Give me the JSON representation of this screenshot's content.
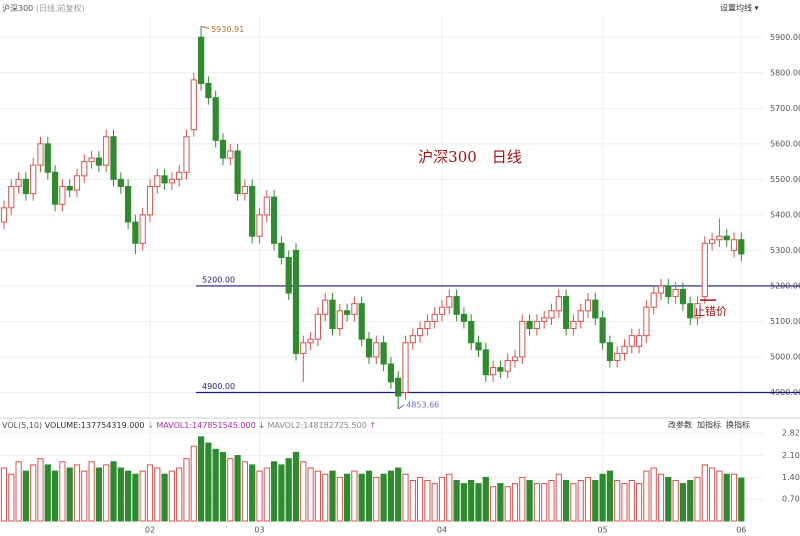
{
  "chart_data": {
    "type": "candlestick",
    "title": "沪深300",
    "subtitle": "(日线,前复权)",
    "menu_label": "设置均线 ▾",
    "annotation": "沪深300　日线",
    "stop_label": "止错价",
    "up_color": "#d9534f",
    "down_color": "#2e8b2e",
    "categories": [
      null,
      null,
      null,
      null,
      null,
      null,
      null,
      null,
      null,
      null,
      null,
      null,
      null,
      null,
      null,
      null,
      null,
      null,
      null,
      null,
      "02",
      null,
      null,
      null,
      null,
      null,
      null,
      null,
      null,
      null,
      null,
      null,
      null,
      null,
      null,
      "03",
      null,
      null,
      null,
      null,
      null,
      null,
      null,
      null,
      null,
      null,
      null,
      null,
      null,
      null,
      null,
      null,
      null,
      null,
      null,
      null,
      null,
      null,
      null,
      null,
      "04",
      null,
      null,
      null,
      null,
      null,
      null,
      null,
      null,
      null,
      null,
      null,
      null,
      null,
      null,
      null,
      null,
      null,
      null,
      null,
      null,
      null,
      "05",
      null,
      null,
      null,
      null,
      null,
      null,
      null,
      null,
      null,
      null,
      null,
      null,
      null,
      null,
      null,
      null,
      null,
      null,
      "06"
    ],
    "open": [
      5380,
      5420,
      5480,
      5500,
      5460,
      5540,
      5600,
      5520,
      5430,
      5480,
      5470,
      5510,
      5550,
      5560,
      5540,
      5620,
      5500,
      5480,
      5380,
      5320,
      5400,
      5480,
      5510,
      5490,
      5500,
      5520,
      5640,
      5900,
      5770,
      5730,
      5610,
      5560,
      5580,
      5460,
      5480,
      5340,
      5400,
      5450,
      5320,
      5280,
      5300,
      5010,
      5040,
      5050,
      5120,
      5160,
      5080,
      5130,
      5120,
      5150,
      5050,
      5000,
      5040,
      4980,
      4940,
      4900,
      5040,
      5060,
      5080,
      5100,
      5120,
      5140,
      5170,
      5120,
      5100,
      5040,
      5020,
      4950,
      4970,
      4960,
      4990,
      5000,
      5100,
      5080,
      5100,
      5110,
      5130,
      5170,
      5080,
      5100,
      5130,
      5160,
      5110,
      5040,
      4990,
      5010,
      5030,
      5030,
      5060,
      5140,
      5180,
      5200,
      5170,
      5190,
      5150,
      5110,
      5170,
      5320,
      5330,
      5340,
      5300,
      5330
    ],
    "high": [
      5440,
      5500,
      5520,
      5520,
      5560,
      5620,
      5620,
      5540,
      5500,
      5500,
      5530,
      5570,
      5580,
      5580,
      5640,
      5640,
      5520,
      5500,
      5400,
      5420,
      5500,
      5530,
      5530,
      5520,
      5540,
      5640,
      5800,
      5930.91,
      5790,
      5750,
      5630,
      5600,
      5600,
      5500,
      5500,
      5420,
      5470,
      5470,
      5340,
      5300,
      5320,
      5060,
      5070,
      5140,
      5180,
      5180,
      5150,
      5150,
      5170,
      5170,
      5070,
      5060,
      5060,
      5000,
      4960,
      5060,
      5080,
      5100,
      5120,
      5140,
      5160,
      5190,
      5190,
      5140,
      5120,
      5060,
      5040,
      4990,
      4990,
      5010,
      5020,
      5120,
      5120,
      5120,
      5130,
      5150,
      5190,
      5190,
      5120,
      5150,
      5180,
      5180,
      5130,
      5060,
      5030,
      5050,
      5080,
      5080,
      5160,
      5200,
      5220,
      5220,
      5210,
      5210,
      5170,
      5170,
      5340,
      5350,
      5390,
      5360,
      5350,
      5350
    ],
    "low": [
      5360,
      5400,
      5460,
      5440,
      5440,
      5520,
      5500,
      5410,
      5410,
      5450,
      5450,
      5490,
      5530,
      5520,
      5520,
      5480,
      5460,
      5360,
      5290,
      5300,
      5380,
      5460,
      5470,
      5470,
      5480,
      5500,
      5620,
      5750,
      5710,
      5590,
      5540,
      5540,
      5440,
      5440,
      5320,
      5320,
      5380,
      5300,
      5260,
      5160,
      4990,
      4930,
      5020,
      5030,
      5100,
      5060,
      5060,
      5100,
      5100,
      5030,
      4980,
      4980,
      4960,
      4910,
      4853.66,
      4880,
      5020,
      5040,
      5060,
      5080,
      5100,
      5120,
      5100,
      5080,
      5020,
      5000,
      4930,
      4930,
      4940,
      4940,
      4970,
      4980,
      5060,
      5060,
      5080,
      5090,
      5110,
      5060,
      5060,
      5080,
      5110,
      5090,
      5020,
      4970,
      4970,
      4990,
      5010,
      5010,
      5040,
      5120,
      5160,
      5150,
      5150,
      5130,
      5090,
      5090,
      5150,
      5300,
      5310,
      5310,
      5280,
      5270
    ],
    "close": [
      5420,
      5480,
      5500,
      5460,
      5540,
      5600,
      5520,
      5430,
      5480,
      5470,
      5510,
      5550,
      5560,
      5540,
      5620,
      5500,
      5480,
      5380,
      5320,
      5400,
      5480,
      5510,
      5490,
      5500,
      5520,
      5620,
      5780,
      5770,
      5730,
      5610,
      5560,
      5580,
      5460,
      5480,
      5340,
      5400,
      5450,
      5320,
      5280,
      5180,
      5010,
      5040,
      5050,
      5120,
      5160,
      5080,
      5130,
      5120,
      5150,
      5050,
      5000,
      5040,
      4980,
      4930,
      4890,
      5040,
      5060,
      5080,
      5100,
      5120,
      5140,
      5170,
      5120,
      5100,
      5040,
      5020,
      4950,
      4970,
      4960,
      4990,
      5000,
      5100,
      5080,
      5100,
      5110,
      5130,
      5170,
      5080,
      5100,
      5130,
      5160,
      5110,
      5040,
      4990,
      5010,
      5030,
      5060,
      5060,
      5140,
      5180,
      5200,
      5170,
      5190,
      5150,
      5110,
      5150,
      5320,
      5330,
      5340,
      5330,
      5330,
      5290
    ],
    "volume": [
      1.7,
      1.5,
      1.9,
      1.6,
      1.8,
      2.0,
      1.8,
      1.6,
      1.9,
      1.7,
      1.8,
      1.6,
      1.9,
      1.7,
      1.8,
      1.9,
      1.7,
      1.6,
      1.5,
      1.6,
      1.8,
      1.7,
      1.5,
      1.6,
      1.7,
      2.0,
      2.4,
      2.7,
      2.5,
      2.3,
      2.2,
      2.0,
      2.1,
      1.9,
      1.8,
      1.6,
      1.7,
      1.9,
      1.8,
      2.0,
      2.2,
      1.9,
      1.7,
      1.6,
      1.5,
      1.6,
      1.4,
      1.5,
      1.6,
      1.5,
      1.6,
      1.4,
      1.5,
      1.6,
      1.7,
      1.5,
      1.3,
      1.4,
      1.3,
      1.2,
      1.4,
      1.5,
      1.3,
      1.2,
      1.3,
      1.2,
      1.4,
      1.1,
      1.2,
      1.1,
      1.2,
      1.4,
      1.3,
      1.2,
      1.2,
      1.3,
      1.5,
      1.3,
      1.2,
      1.3,
      1.4,
      1.3,
      1.5,
      1.6,
      1.3,
      1.2,
      1.3,
      1.2,
      1.6,
      1.7,
      1.5,
      1.4,
      1.3,
      1.2,
      1.3,
      1.4,
      1.8,
      1.7,
      1.6,
      1.5,
      1.5,
      1.3775
    ],
    "ylim": [
      4845,
      5960
    ],
    "yticks": [
      {
        "value": 4900,
        "label": "4900.00"
      },
      {
        "value": 5000,
        "label": "5000.00"
      },
      {
        "value": 5100,
        "label": "5100.00"
      },
      {
        "value": 5200,
        "label": "5200.00"
      },
      {
        "value": 5300,
        "label": "5300.00"
      },
      {
        "value": 5400,
        "label": "5400.00"
      },
      {
        "value": 5500,
        "label": "5500.00"
      },
      {
        "value": 5600,
        "label": "5600.00"
      },
      {
        "value": 5700,
        "label": "5700.00"
      },
      {
        "value": 5800,
        "label": "5800.00"
      },
      {
        "value": 5900,
        "label": "5900.00"
      }
    ],
    "hlines": [
      {
        "value": 5200,
        "label": "5200.00"
      },
      {
        "value": 4900,
        "label": "4900.00"
      }
    ],
    "hline_color": "#1a1a7a",
    "stop_value": 5160,
    "grid": true,
    "volume_panel": {
      "name": "VOL(5,10)",
      "volume": "VOLUME:137754319.000",
      "volume_arrow": "↓",
      "mavol1": "MAVOL1:147851545.000",
      "mavol1_arrow": "↓",
      "mavol2": "MAVOL2:148182725.500",
      "mavol2_arrow": "↑",
      "buttons": [
        "改参数",
        "加指标",
        "换指标"
      ],
      "ylim": [
        0,
        3.08
      ],
      "yticks": [
        {
          "value": 0.7,
          "label": "0.70"
        },
        {
          "value": 1.4,
          "label": "1.40"
        },
        {
          "value": 2.1,
          "label": "2.10"
        },
        2.82
      ]
    }
  }
}
